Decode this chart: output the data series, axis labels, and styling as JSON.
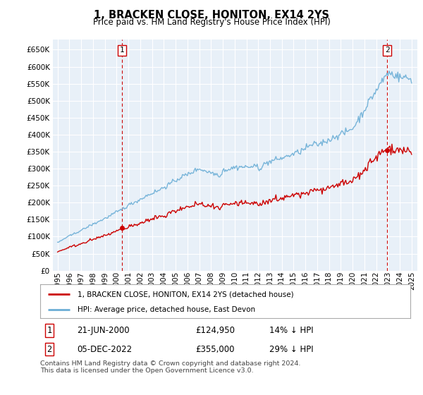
{
  "title": "1, BRACKEN CLOSE, HONITON, EX14 2YS",
  "subtitle": "Price paid vs. HM Land Registry's House Price Index (HPI)",
  "ylim": [
    0,
    680000
  ],
  "yticks": [
    0,
    50000,
    100000,
    150000,
    200000,
    250000,
    300000,
    350000,
    400000,
    450000,
    500000,
    550000,
    600000,
    650000
  ],
  "background_color": "#e8f0f8",
  "grid_color": "#ffffff",
  "sale1_year": 2000.46,
  "sale1_value": 124950,
  "sale2_year": 2022.92,
  "sale2_value": 355000,
  "legend_line1": "1, BRACKEN CLOSE, HONITON, EX14 2YS (detached house)",
  "legend_line2": "HPI: Average price, detached house, East Devon",
  "table_row1": [
    "1",
    "21-JUN-2000",
    "£124,950",
    "14% ↓ HPI"
  ],
  "table_row2": [
    "2",
    "05-DEC-2022",
    "£355,000",
    "29% ↓ HPI"
  ],
  "footnote": "Contains HM Land Registry data © Crown copyright and database right 2024.\nThis data is licensed under the Open Government Licence v3.0.",
  "hpi_color": "#6baed6",
  "price_color": "#cc0000",
  "dashed_line_color": "#cc0000",
  "x_start_year": 1995,
  "x_end_year": 2025
}
